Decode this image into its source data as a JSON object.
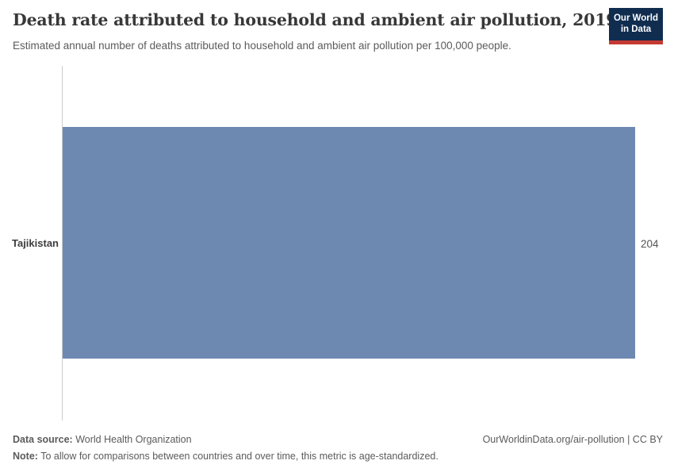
{
  "header": {
    "title": "Death rate attributed to household and ambient air pollution, 2019",
    "subtitle": "Estimated annual number of deaths attributed to household and ambient air pollution per 100,000 people."
  },
  "logo": {
    "line1": "Our World",
    "line2": "in Data",
    "bg_color": "#102d50",
    "stripe_color": "#c53a32",
    "text_color": "#ffffff"
  },
  "chart_data": {
    "type": "bar",
    "orientation": "horizontal",
    "categories": [
      "Tajikistan"
    ],
    "values": [
      204
    ],
    "value_labels": [
      "204"
    ],
    "series": [
      {
        "name": "Death rate attributed to household and ambient air pollution",
        "values": [
          204
        ]
      }
    ],
    "title": "Death rate attributed to household and ambient air pollution, 2019",
    "subtitle": "Estimated annual number of deaths attributed to household and ambient air pollution per 100,000 people.",
    "xlabel": "",
    "ylabel": "",
    "xlim": [
      0,
      204
    ],
    "grid": false,
    "legend": "none",
    "bar_color": "#6e89b1",
    "axis_color": "#cccccc"
  },
  "footer": {
    "data_source_label": "Data source:",
    "data_source_value": "World Health Organization",
    "note_label": "Note:",
    "note_value": "To allow for comparisons between countries and over time, this metric is age-standardized.",
    "attribution": "OurWorldinData.org/air-pollution | CC BY"
  },
  "colors": {
    "bar": "#6e89b1",
    "axis_line": "#cccccc",
    "title_text": "#383838",
    "body_text": "#5b5b5b",
    "logo_bg": "#102d50",
    "logo_stripe": "#c53a32"
  }
}
